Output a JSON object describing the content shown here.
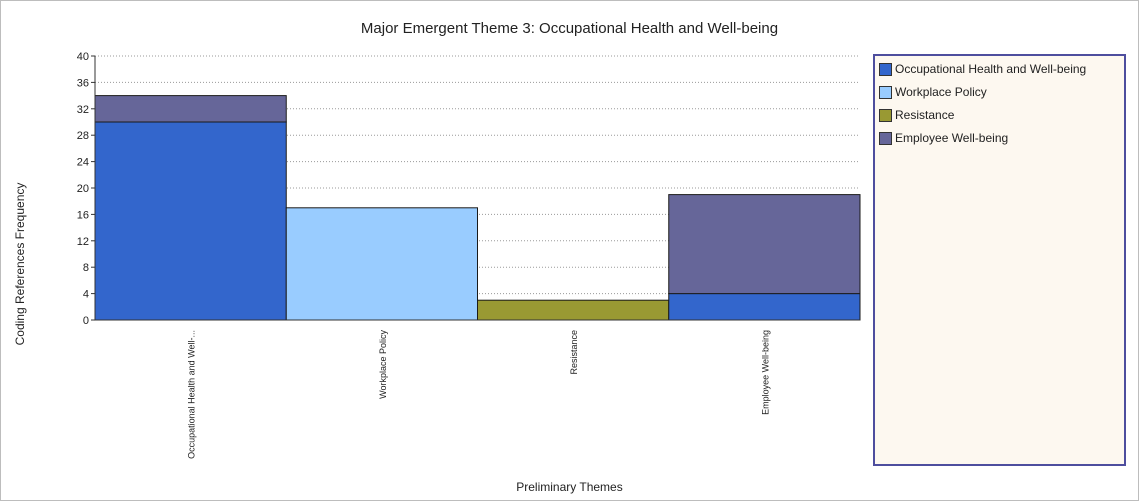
{
  "chart_data": {
    "type": "bar",
    "stacked": true,
    "title": "Major Emergent Theme 3: Occupational Health and Well-being",
    "xlabel": "Preliminary Themes",
    "ylabel": "Coding References Frequency",
    "categories": [
      "Occupational Health and Well-...",
      "Workplace Policy",
      "Resistance",
      "Employee Well-being"
    ],
    "ylim": [
      0,
      40
    ],
    "yticks": [
      0,
      4,
      8,
      12,
      16,
      20,
      24,
      28,
      32,
      36,
      40
    ],
    "grid": true,
    "legend_position": "right",
    "series": [
      {
        "name": "Occupational Health and Well-being",
        "color": "#3366cc",
        "values": [
          30,
          0,
          0,
          4
        ]
      },
      {
        "name": "Workplace Policy",
        "color": "#99ccff",
        "values": [
          0,
          17,
          0,
          0
        ]
      },
      {
        "name": "Resistance",
        "color": "#999933",
        "values": [
          0,
          0,
          3,
          0
        ]
      },
      {
        "name": "Employee Well-being",
        "color": "#666699",
        "values": [
          4,
          0,
          0,
          15
        ]
      }
    ]
  }
}
